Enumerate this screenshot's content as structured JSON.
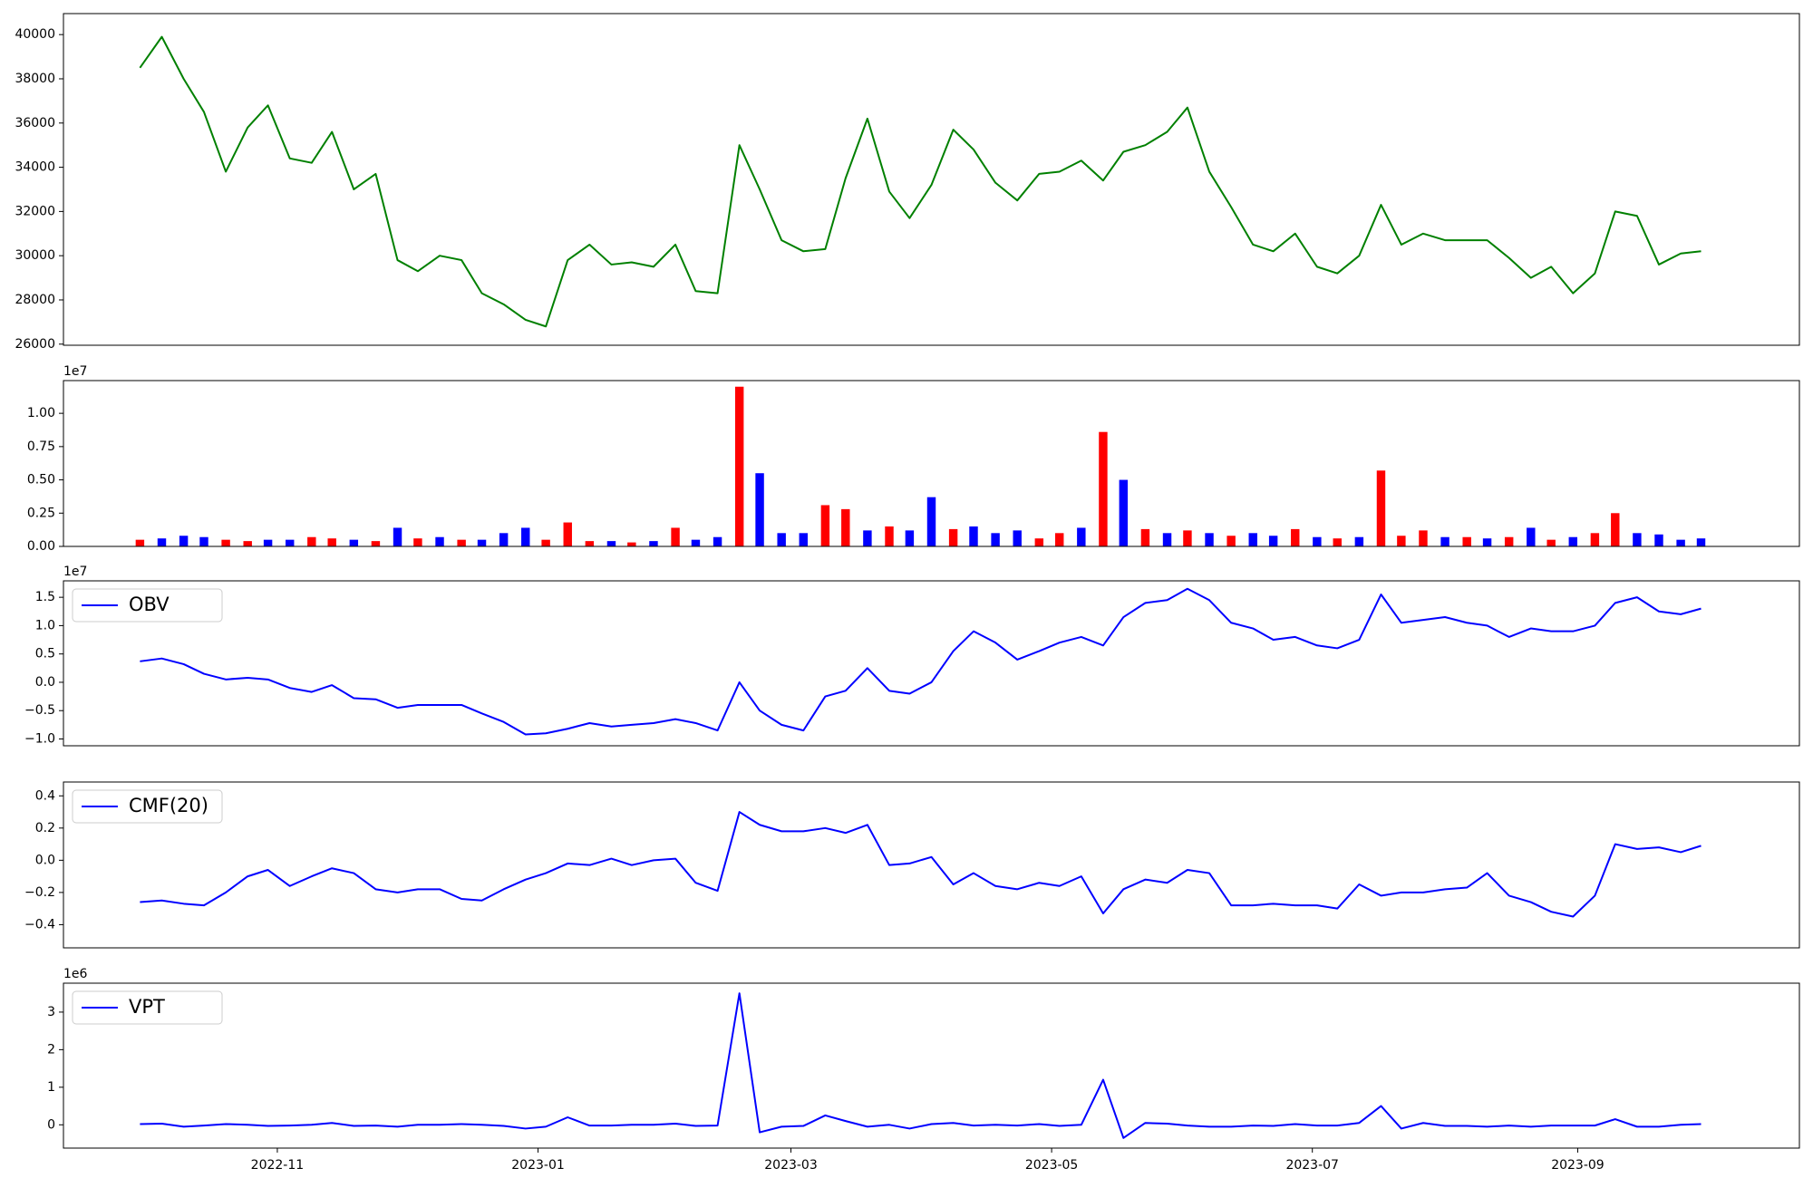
{
  "chart_data": [
    {
      "type": "line",
      "x": [
        2022.745,
        2022.759,
        2022.773,
        2022.786,
        2022.8,
        2022.814,
        2022.827,
        2022.841,
        2022.855,
        2022.868,
        2022.882,
        2022.896,
        2022.91,
        2022.923,
        2022.937,
        2022.951,
        2022.964,
        2022.978,
        2022.992,
        2023.005,
        2023.019,
        2023.033,
        2023.047,
        2023.06,
        2023.074,
        2023.088,
        2023.101,
        2023.115,
        2023.129,
        2023.142,
        2023.156,
        2023.17,
        2023.184,
        2023.197,
        2023.211,
        2023.225,
        2023.238,
        2023.252,
        2023.266,
        2023.279,
        2023.293,
        2023.307,
        2023.321,
        2023.334,
        2023.348,
        2023.362,
        2023.375,
        2023.389,
        2023.403,
        2023.416,
        2023.43,
        2023.444,
        2023.458,
        2023.471,
        2023.485,
        2023.499,
        2023.512,
        2023.526,
        2023.54,
        2023.553,
        2023.567,
        2023.581,
        2023.595,
        2023.608,
        2023.622,
        2023.636,
        2023.649,
        2023.663,
        2023.677,
        2023.69,
        2023.704,
        2023.718,
        2023.732,
        2023.745
      ],
      "series": [
        {
          "color": "#008000",
          "values": [
            38500,
            39900,
            38000,
            36500,
            33800,
            35800,
            36800,
            34400,
            34200,
            35600,
            33000,
            33700,
            29800,
            29300,
            30000,
            29800,
            28300,
            27800,
            27100,
            26800,
            29800,
            30500,
            29600,
            29700,
            29500,
            30500,
            28400,
            28300,
            35000,
            33000,
            30700,
            30200,
            30300,
            33500,
            36200,
            32900,
            31700,
            33200,
            35700,
            34800,
            33300,
            32500,
            33700,
            33800,
            34300,
            33400,
            34700,
            35000,
            35600,
            36700,
            33800,
            32200,
            30500,
            30200,
            31000,
            29500,
            29200,
            30000,
            32300,
            30500,
            31000,
            30700,
            30700,
            30700,
            29900,
            29000,
            29500,
            28300,
            29200,
            32000,
            31800,
            29600,
            30100,
            30200
          ]
        }
      ],
      "xlim": [
        2022.696,
        2023.808
      ],
      "ylim": [
        25950,
        40950
      ],
      "yticks": [
        26000,
        28000,
        30000,
        32000,
        34000,
        36000,
        38000,
        40000
      ]
    },
    {
      "type": "bar",
      "offset_label": "1e7",
      "x": [
        2022.745,
        2022.759,
        2022.773,
        2022.786,
        2022.8,
        2022.814,
        2022.827,
        2022.841,
        2022.855,
        2022.868,
        2022.882,
        2022.896,
        2022.91,
        2022.923,
        2022.937,
        2022.951,
        2022.964,
        2022.978,
        2022.992,
        2023.005,
        2023.019,
        2023.033,
        2023.047,
        2023.06,
        2023.074,
        2023.088,
        2023.101,
        2023.115,
        2023.129,
        2023.142,
        2023.156,
        2023.17,
        2023.184,
        2023.197,
        2023.211,
        2023.225,
        2023.238,
        2023.252,
        2023.266,
        2023.279,
        2023.293,
        2023.307,
        2023.321,
        2023.334,
        2023.348,
        2023.362,
        2023.375,
        2023.389,
        2023.403,
        2023.416,
        2023.43,
        2023.444,
        2023.458,
        2023.471,
        2023.485,
        2023.499,
        2023.512,
        2023.526,
        2023.54,
        2023.553,
        2023.567,
        2023.581,
        2023.595,
        2023.608,
        2023.622,
        2023.636,
        2023.649,
        2023.663,
        2023.677,
        2023.69,
        2023.704,
        2023.718,
        2023.732,
        2023.745
      ],
      "series": [
        {
          "values": [
            0.05,
            0.06,
            0.08,
            0.07,
            0.05,
            0.04,
            0.05,
            0.05,
            0.07,
            0.06,
            0.05,
            0.04,
            0.14,
            0.06,
            0.07,
            0.05,
            0.05,
            0.1,
            0.14,
            0.05,
            0.18,
            0.04,
            0.04,
            0.03,
            0.04,
            0.14,
            0.05,
            0.07,
            1.2,
            0.55,
            0.1,
            0.1,
            0.31,
            0.28,
            0.12,
            0.15,
            0.12,
            0.37,
            0.13,
            0.15,
            0.1,
            0.12,
            0.06,
            0.1,
            0.14,
            0.86,
            0.5,
            0.13,
            0.1,
            0.12,
            0.1,
            0.08,
            0.1,
            0.08,
            0.13,
            0.07,
            0.06,
            0.07,
            0.57,
            0.08,
            0.12,
            0.07,
            0.07,
            0.06,
            0.07,
            0.14,
            0.05,
            0.07,
            0.1,
            0.25,
            0.1,
            0.09,
            0.05,
            0.06
          ],
          "colors": [
            "#ff0000",
            "#0000ff",
            "#0000ff",
            "#0000ff",
            "#ff0000",
            "#ff0000",
            "#0000ff",
            "#0000ff",
            "#ff0000",
            "#ff0000",
            "#0000ff",
            "#ff0000",
            "#0000ff",
            "#ff0000",
            "#0000ff",
            "#ff0000",
            "#0000ff",
            "#0000ff",
            "#0000ff",
            "#ff0000",
            "#ff0000",
            "#ff0000",
            "#0000ff",
            "#ff0000",
            "#0000ff",
            "#ff0000",
            "#0000ff",
            "#0000ff",
            "#ff0000",
            "#0000ff",
            "#0000ff",
            "#0000ff",
            "#ff0000",
            "#ff0000",
            "#0000ff",
            "#ff0000",
            "#0000ff",
            "#0000ff",
            "#ff0000",
            "#0000ff",
            "#0000ff",
            "#0000ff",
            "#ff0000",
            "#ff0000",
            "#0000ff",
            "#ff0000",
            "#0000ff",
            "#ff0000",
            "#0000ff",
            "#ff0000",
            "#0000ff",
            "#ff0000",
            "#0000ff",
            "#0000ff",
            "#ff0000",
            "#0000ff",
            "#ff0000",
            "#0000ff",
            "#ff0000",
            "#ff0000",
            "#ff0000",
            "#0000ff",
            "#ff0000",
            "#0000ff",
            "#ff0000",
            "#0000ff",
            "#ff0000",
            "#0000ff",
            "#ff0000",
            "#ff0000",
            "#0000ff",
            "#0000ff",
            "#0000ff",
            "#0000ff"
          ]
        }
      ],
      "xlim": [
        2022.696,
        2023.808
      ],
      "ylim": [
        0,
        1.246
      ],
      "yticks": [
        {
          "value": 0,
          "label": "0.00"
        },
        {
          "value": 0.25,
          "label": "0.25"
        },
        {
          "value": 0.5,
          "label": "0.50"
        },
        {
          "value": 0.75,
          "label": "0.75"
        },
        {
          "value": 1,
          "label": "1.00"
        }
      ]
    },
    {
      "type": "line",
      "offset_label": "1e7",
      "legend": "upper left",
      "x": [
        2022.745,
        2022.759,
        2022.773,
        2022.786,
        2022.8,
        2022.814,
        2022.827,
        2022.841,
        2022.855,
        2022.868,
        2022.882,
        2022.896,
        2022.91,
        2022.923,
        2022.937,
        2022.951,
        2022.964,
        2022.978,
        2022.992,
        2023.005,
        2023.019,
        2023.033,
        2023.047,
        2023.06,
        2023.074,
        2023.088,
        2023.101,
        2023.115,
        2023.129,
        2023.142,
        2023.156,
        2023.17,
        2023.184,
        2023.197,
        2023.211,
        2023.225,
        2023.238,
        2023.252,
        2023.266,
        2023.279,
        2023.293,
        2023.307,
        2023.321,
        2023.334,
        2023.348,
        2023.362,
        2023.375,
        2023.389,
        2023.403,
        2023.416,
        2023.43,
        2023.444,
        2023.458,
        2023.471,
        2023.485,
        2023.499,
        2023.512,
        2023.526,
        2023.54,
        2023.553,
        2023.567,
        2023.581,
        2023.595,
        2023.608,
        2023.622,
        2023.636,
        2023.649,
        2023.663,
        2023.677,
        2023.69,
        2023.704,
        2023.718,
        2023.732,
        2023.745
      ],
      "series": [
        {
          "name": "OBV",
          "color": "#0000ff",
          "values": [
            0.37,
            0.42,
            0.32,
            0.15,
            0.05,
            0.08,
            0.05,
            -0.1,
            -0.17,
            -0.05,
            -0.28,
            -0.3,
            -0.45,
            -0.4,
            -0.4,
            -0.4,
            -0.55,
            -0.7,
            -0.92,
            -0.9,
            -0.82,
            -0.72,
            -0.78,
            -0.75,
            -0.72,
            -0.65,
            -0.72,
            -0.85,
            0.0,
            -0.5,
            -0.75,
            -0.85,
            -0.25,
            -0.15,
            0.25,
            -0.15,
            -0.2,
            0.0,
            0.55,
            0.9,
            0.7,
            0.4,
            0.55,
            0.7,
            0.8,
            0.65,
            1.15,
            1.4,
            1.45,
            1.65,
            1.45,
            1.05,
            0.95,
            0.75,
            0.8,
            0.65,
            0.6,
            0.75,
            1.55,
            1.05,
            1.1,
            1.15,
            1.05,
            1.0,
            0.8,
            0.95,
            0.9,
            0.9,
            1.0,
            1.4,
            1.5,
            1.25,
            1.2,
            1.3
          ]
        }
      ],
      "xlim": [
        2022.696,
        2023.808
      ],
      "ylim": [
        -1.12,
        1.79
      ],
      "yticks": [
        {
          "value": -1,
          "label": "−1.0"
        },
        {
          "value": -0.5,
          "label": "−0.5"
        },
        {
          "value": 0,
          "label": "0.0"
        },
        {
          "value": 0.5,
          "label": "0.5"
        },
        {
          "value": 1,
          "label": "1.0"
        },
        {
          "value": 1.5,
          "label": "1.5"
        }
      ]
    },
    {
      "type": "line",
      "legend": "upper left",
      "x": [
        2022.745,
        2022.759,
        2022.773,
        2022.786,
        2022.8,
        2022.814,
        2022.827,
        2022.841,
        2022.855,
        2022.868,
        2022.882,
        2022.896,
        2022.91,
        2022.923,
        2022.937,
        2022.951,
        2022.964,
        2022.978,
        2022.992,
        2023.005,
        2023.019,
        2023.033,
        2023.047,
        2023.06,
        2023.074,
        2023.088,
        2023.101,
        2023.115,
        2023.129,
        2023.142,
        2023.156,
        2023.17,
        2023.184,
        2023.197,
        2023.211,
        2023.225,
        2023.238,
        2023.252,
        2023.266,
        2023.279,
        2023.293,
        2023.307,
        2023.321,
        2023.334,
        2023.348,
        2023.362,
        2023.375,
        2023.389,
        2023.403,
        2023.416,
        2023.43,
        2023.444,
        2023.458,
        2023.471,
        2023.485,
        2023.499,
        2023.512,
        2023.526,
        2023.54,
        2023.553,
        2023.567,
        2023.581,
        2023.595,
        2023.608,
        2023.622,
        2023.636,
        2023.649,
        2023.663,
        2023.677,
        2023.69,
        2023.704,
        2023.718,
        2023.732,
        2023.745
      ],
      "series": [
        {
          "name": "CMF(20)",
          "color": "#0000ff",
          "values": [
            -0.26,
            -0.25,
            -0.27,
            -0.28,
            -0.2,
            -0.1,
            -0.06,
            -0.16,
            -0.1,
            -0.05,
            -0.08,
            -0.18,
            -0.2,
            -0.18,
            -0.18,
            -0.24,
            -0.25,
            -0.18,
            -0.12,
            -0.08,
            -0.02,
            -0.03,
            0.01,
            -0.03,
            0.0,
            0.01,
            -0.14,
            -0.19,
            0.3,
            0.22,
            0.18,
            0.18,
            0.2,
            0.17,
            0.22,
            -0.03,
            -0.02,
            0.02,
            -0.15,
            -0.08,
            -0.16,
            -0.18,
            -0.14,
            -0.16,
            -0.1,
            -0.33,
            -0.18,
            -0.12,
            -0.14,
            -0.06,
            -0.08,
            -0.28,
            -0.28,
            -0.27,
            -0.28,
            -0.28,
            -0.3,
            -0.15,
            -0.22,
            -0.2,
            -0.2,
            -0.18,
            -0.17,
            -0.08,
            -0.22,
            -0.26,
            -0.32,
            -0.35,
            -0.22,
            0.1,
            0.07,
            0.08,
            0.05,
            0.09
          ]
        }
      ],
      "xlim": [
        2022.696,
        2023.808
      ],
      "ylim": [
        -0.544,
        0.486
      ],
      "yticks": [
        {
          "value": -0.4,
          "label": "−0.4"
        },
        {
          "value": -0.2,
          "label": "−0.2"
        },
        {
          "value": 0,
          "label": "0.0"
        },
        {
          "value": 0.2,
          "label": "0.2"
        },
        {
          "value": 0.4,
          "label": "0.4"
        }
      ]
    },
    {
      "type": "line",
      "offset_label": "1e6",
      "legend": "upper left",
      "x": [
        2022.745,
        2022.759,
        2022.773,
        2022.786,
        2022.8,
        2022.814,
        2022.827,
        2022.841,
        2022.855,
        2022.868,
        2022.882,
        2022.896,
        2022.91,
        2022.923,
        2022.937,
        2022.951,
        2022.964,
        2022.978,
        2022.992,
        2023.005,
        2023.019,
        2023.033,
        2023.047,
        2023.06,
        2023.074,
        2023.088,
        2023.101,
        2023.115,
        2023.129,
        2023.142,
        2023.156,
        2023.17,
        2023.184,
        2023.197,
        2023.211,
        2023.225,
        2023.238,
        2023.252,
        2023.266,
        2023.279,
        2023.293,
        2023.307,
        2023.321,
        2023.334,
        2023.348,
        2023.362,
        2023.375,
        2023.389,
        2023.403,
        2023.416,
        2023.43,
        2023.444,
        2023.458,
        2023.471,
        2023.485,
        2023.499,
        2023.512,
        2023.526,
        2023.54,
        2023.553,
        2023.567,
        2023.581,
        2023.595,
        2023.608,
        2023.622,
        2023.636,
        2023.649,
        2023.663,
        2023.677,
        2023.69,
        2023.704,
        2023.718,
        2023.732,
        2023.745
      ],
      "series": [
        {
          "name": "VPT",
          "color": "#0000ff",
          "values": [
            0.02,
            0.03,
            -0.05,
            -0.02,
            0.02,
            0.0,
            -0.03,
            -0.02,
            0.0,
            0.05,
            -0.03,
            -0.02,
            -0.05,
            0.0,
            0.0,
            0.02,
            0.0,
            -0.03,
            -0.1,
            -0.05,
            0.2,
            -0.02,
            -0.02,
            0.0,
            0.0,
            0.03,
            -0.03,
            -0.02,
            3.5,
            -0.2,
            -0.05,
            -0.03,
            0.25,
            0.1,
            -0.05,
            0.0,
            -0.1,
            0.02,
            0.05,
            -0.02,
            0.0,
            -0.02,
            0.02,
            -0.03,
            0.0,
            1.2,
            -0.35,
            0.05,
            0.03,
            -0.02,
            -0.05,
            -0.05,
            -0.02,
            -0.03,
            0.02,
            -0.02,
            -0.02,
            0.05,
            0.5,
            -0.1,
            0.05,
            -0.03,
            -0.03,
            -0.05,
            -0.02,
            -0.05,
            -0.02,
            -0.02,
            -0.02,
            0.15,
            -0.05,
            -0.05,
            0.0,
            0.02
          ]
        }
      ],
      "xlim": [
        2022.696,
        2023.808
      ],
      "ylim": [
        -0.62,
        3.77
      ],
      "yticks": [
        0,
        1,
        2,
        3
      ],
      "xticks": [
        {
          "value": 2022.833,
          "label": "2022-11"
        },
        {
          "value": 2023.0,
          "label": "2023-01"
        },
        {
          "value": 2023.162,
          "label": "2023-03"
        },
        {
          "value": 2023.329,
          "label": "2023-05"
        },
        {
          "value": 2023.496,
          "label": "2023-07"
        },
        {
          "value": 2023.666,
          "label": "2023-09"
        }
      ]
    }
  ]
}
